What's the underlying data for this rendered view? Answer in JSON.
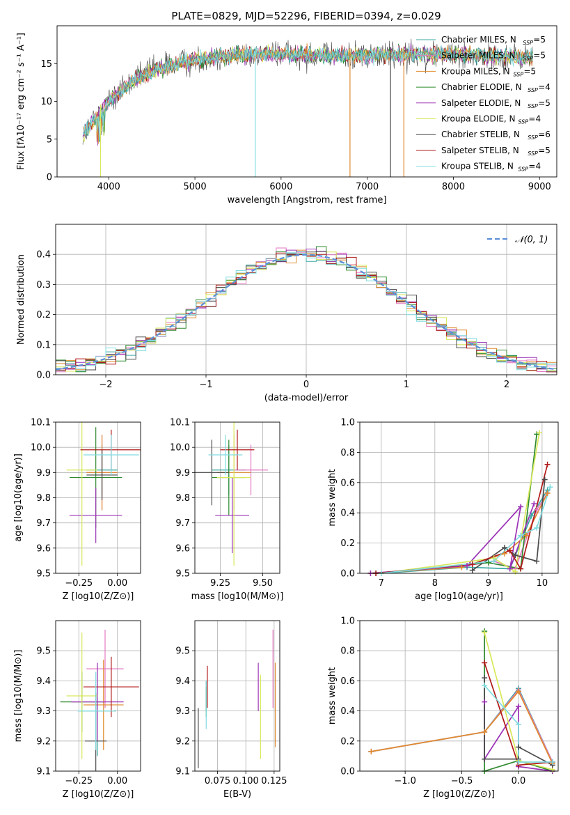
{
  "title": "PLATE=0829, MJD=52296, FIBERID=0394, z=0.029",
  "models": [
    {
      "name": "Chabrier MILES",
      "nssp": "5",
      "color": "#3aa8a3"
    },
    {
      "name": "Salpeter MILES",
      "nssp": "5",
      "color": "#e377c2"
    },
    {
      "name": "Kroupa MILES",
      "nssp": "5",
      "color": "#e08b2e"
    },
    {
      "name": "Chabrier ELODIE",
      "nssp": "4",
      "color": "#2f8a2f"
    },
    {
      "name": "Salpeter ELODIE",
      "nssp": "5",
      "color": "#9b30b5"
    },
    {
      "name": "Kroupa ELODIE",
      "nssp": "4",
      "color": "#d8e85a"
    },
    {
      "name": "Chabrier STELIB",
      "nssp": "6",
      "color": "#4a4a4a"
    },
    {
      "name": "Salpeter STELIB",
      "nssp": "5",
      "color": "#b01818"
    },
    {
      "name": "Kroupa STELIB",
      "nssp": "4",
      "color": "#80dce0"
    }
  ],
  "chart_data": [
    {
      "id": "spectrum",
      "type": "line",
      "xlabel": "wavelength [Angstrom, rest frame]",
      "ylabel": "Flux [fλ10⁻¹⁷ erg cm⁻² s⁻¹ A⁻¹]",
      "xlim": [
        3400,
        9200
      ],
      "ylim": [
        0,
        20
      ],
      "xticks": [
        4000,
        5000,
        6000,
        7000,
        8000,
        9000
      ],
      "yticks": [
        0,
        5,
        10,
        15
      ],
      "grid": false,
      "legend": "upper-right",
      "continuum": [
        [
          3700,
          5.5
        ],
        [
          3800,
          7
        ],
        [
          3900,
          8.5
        ],
        [
          4000,
          10
        ],
        [
          4100,
          11
        ],
        [
          4200,
          12
        ],
        [
          4400,
          13.5
        ],
        [
          4600,
          14.3
        ],
        [
          4800,
          15
        ],
        [
          5000,
          15.5
        ],
        [
          5200,
          15.8
        ],
        [
          5500,
          16.1
        ],
        [
          6000,
          16.3
        ],
        [
          6500,
          16.1
        ],
        [
          7000,
          16
        ],
        [
          7500,
          16.3
        ],
        [
          8000,
          16.2
        ],
        [
          8500,
          16
        ],
        [
          8900,
          15.7
        ]
      ],
      "dropouts": [
        3905,
        5700,
        6800,
        7270,
        7425
      ]
    },
    {
      "id": "residuals",
      "type": "histogram",
      "xlabel": "(data-model)/error",
      "ylabel": "Normed distribution",
      "xlim": [
        -2.5,
        2.5
      ],
      "ylim": [
        0,
        0.5
      ],
      "xticks": [
        -2,
        -1,
        0,
        1,
        2
      ],
      "yticks": [
        0.0,
        0.1,
        0.2,
        0.3,
        0.4
      ],
      "grid": true,
      "legend": "upper-right",
      "reference": {
        "label": "𝒩(0, 1)",
        "mean": 0,
        "sigma": 1,
        "color": "#5b8fd8"
      },
      "bins": 50
    },
    {
      "id": "age-vs-Z",
      "type": "errorbar",
      "xlabel": "Z [log10(Z/Z⊙)]",
      "ylabel": "age [log10(age/yr)]",
      "xlim": [
        -0.4,
        0.15
      ],
      "ylim": [
        9.5,
        10.1
      ],
      "xticks": [
        -0.25,
        0.0
      ],
      "yticks": [
        9.5,
        9.6,
        9.7,
        9.8,
        9.9,
        10.0,
        10.1
      ],
      "points": [
        {
          "x": -0.1,
          "y": 9.91,
          "ex": 0.1,
          "ey": 0.1
        },
        {
          "x": -0.1,
          "y": 9.9,
          "ex": 0.1,
          "ey": 0.15
        },
        {
          "x": -0.1,
          "y": 9.9,
          "ex": 0.1,
          "ey": 0.15
        },
        {
          "x": -0.14,
          "y": 9.88,
          "ex": 0.17,
          "ey": 0.2
        },
        {
          "x": -0.14,
          "y": 9.73,
          "ex": 0.17,
          "ey": 0.11
        },
        {
          "x": -0.23,
          "y": 9.91,
          "ex": 0.1,
          "ey": 0.38
        },
        {
          "x": -0.1,
          "y": 9.89,
          "ex": 0.1,
          "ey": 0.1
        },
        {
          "x": -0.04,
          "y": 9.99,
          "ex": 0.2,
          "ey": 0.08
        },
        {
          "x": -0.04,
          "y": 9.97,
          "ex": 0.18,
          "ey": 0.08
        }
      ]
    },
    {
      "id": "age-vs-mass",
      "type": "errorbar",
      "xlabel": "mass [log10(M/M⊙)]",
      "ylabel": "",
      "xlim": [
        9.1,
        9.6
      ],
      "ylim": [
        9.5,
        10.1
      ],
      "xticks": [
        9.25,
        9.5
      ],
      "yticks": [
        9.5,
        9.6,
        9.7,
        9.8,
        9.9,
        10.0,
        10.1
      ],
      "points": [
        {
          "x": 9.3,
          "y": 9.91,
          "ex": 0.1,
          "ey": 0.1
        },
        {
          "x": 9.43,
          "y": 9.91,
          "ex": 0.1,
          "ey": 0.1
        },
        {
          "x": 9.33,
          "y": 9.9,
          "ex": 0.1,
          "ey": 0.15
        },
        {
          "x": 9.3,
          "y": 9.88,
          "ex": 0.1,
          "ey": 0.15
        },
        {
          "x": 9.32,
          "y": 9.73,
          "ex": 0.1,
          "ey": 0.15
        },
        {
          "x": 9.33,
          "y": 9.88,
          "ex": 0.1,
          "ey": 0.35
        },
        {
          "x": 9.2,
          "y": 9.9,
          "ex": 0.1,
          "ey": 0.13
        },
        {
          "x": 9.35,
          "y": 9.99,
          "ex": 0.1,
          "ey": 0.08
        },
        {
          "x": 9.28,
          "y": 9.97,
          "ex": 0.1,
          "ey": 0.08
        }
      ]
    },
    {
      "id": "mass-weight-vs-age",
      "type": "line",
      "xlabel": "age [log10(age/yr)]",
      "ylabel": "mass weight",
      "xlim": [
        6.6,
        10.3
      ],
      "ylim": [
        0,
        1
      ],
      "xticks": [
        7,
        8,
        9,
        10
      ],
      "yticks": [
        0.0,
        0.2,
        0.4,
        0.6,
        0.8,
        1.0
      ],
      "grid": true,
      "series": [
        {
          "x": [
            7.0,
            8.6,
            9.4,
            9.8,
            10.1
          ],
          "y": [
            0.0,
            0.04,
            0.03,
            0.38,
            0.55
          ]
        },
        {
          "x": [
            6.9,
            8.6,
            9.1,
            9.5,
            9.9,
            10.1
          ],
          "y": [
            0.0,
            0.05,
            0.08,
            0.03,
            0.42,
            0.53
          ]
        },
        {
          "x": [
            6.8,
            8.5,
            9.3,
            9.7,
            10.1
          ],
          "y": [
            0.0,
            0.04,
            0.13,
            0.25,
            0.53
          ]
        },
        {
          "x": [
            6.9,
            9.0,
            9.6,
            9.9
          ],
          "y": [
            0.0,
            0.07,
            0.03,
            0.92
          ]
        },
        {
          "x": [
            6.8,
            8.6,
            9.6,
            9.4,
            9.85
          ],
          "y": [
            0.0,
            0.05,
            0.44,
            0.03,
            0.46
          ]
        },
        {
          "x": [
            7.0,
            9.1,
            9.5,
            9.95
          ],
          "y": [
            0.0,
            0.1,
            0.01,
            0.93
          ]
        },
        {
          "x": [
            8.7,
            9.3,
            9.5,
            9.9,
            10.05
          ],
          "y": [
            0.02,
            0.17,
            0.12,
            0.08,
            0.62
          ]
        },
        {
          "x": [
            6.9,
            8.7,
            9.4,
            9.6,
            10.1
          ],
          "y": [
            0.0,
            0.06,
            0.15,
            0.03,
            0.72
          ]
        },
        {
          "x": [
            7.0,
            9.1,
            9.6,
            9.9,
            10.15
          ],
          "y": [
            0.0,
            0.08,
            0.25,
            0.3,
            0.57
          ]
        }
      ]
    },
    {
      "id": "mass-vs-Z",
      "type": "errorbar",
      "xlabel": "Z [log10(Z/Z⊙)]",
      "ylabel": "mass [log10(M/M⊙)]",
      "xlim": [
        -0.4,
        0.15
      ],
      "ylim": [
        9.1,
        9.6
      ],
      "xticks": [
        -0.25,
        0.0
      ],
      "yticks": [
        9.1,
        9.2,
        9.3,
        9.4,
        9.5
      ],
      "points": [
        {
          "x": -0.13,
          "y": 9.3,
          "ex": 0.12,
          "ey": 0.15
        },
        {
          "x": -0.08,
          "y": 9.44,
          "ex": 0.12,
          "ey": 0.13
        },
        {
          "x": -0.09,
          "y": 9.32,
          "ex": 0.13,
          "ey": 0.15
        },
        {
          "x": -0.23,
          "y": 9.33,
          "ex": 0.14,
          "ey": 0.1
        },
        {
          "x": -0.13,
          "y": 9.33,
          "ex": 0.17,
          "ey": 0.13
        },
        {
          "x": -0.23,
          "y": 9.35,
          "ex": 0.1,
          "ey": 0.21
        },
        {
          "x": -0.14,
          "y": 9.2,
          "ex": 0.07,
          "ey": 0.16
        },
        {
          "x": -0.04,
          "y": 9.38,
          "ex": 0.18,
          "ey": 0.1
        },
        {
          "x": -0.14,
          "y": 9.3,
          "ex": 0.12,
          "ey": 0.13
        }
      ]
    },
    {
      "id": "mass-vs-EBV",
      "type": "errorbar",
      "xlabel": "E(B-V)",
      "ylabel": "",
      "xlim": [
        0.055,
        0.13
      ],
      "ylim": [
        9.1,
        9.6
      ],
      "xticks": [
        0.075,
        0.1,
        0.125
      ],
      "yticks": [
        9.1,
        9.2,
        9.3,
        9.4,
        9.5
      ],
      "points": [
        {
          "x": 0.065,
          "y": 9.35,
          "ex": 0,
          "ey": 0.05
        },
        {
          "x": 0.124,
          "y": 9.44,
          "ex": 0,
          "ey": 0.13
        },
        {
          "x": 0.126,
          "y": 9.32,
          "ex": 0,
          "ey": 0.14
        },
        {
          "x": 0.065,
          "y": 9.33,
          "ex": 0,
          "ey": 0.05
        },
        {
          "x": 0.111,
          "y": 9.38,
          "ex": 0,
          "ey": 0.08
        },
        {
          "x": 0.113,
          "y": 9.28,
          "ex": 0,
          "ey": 0.14
        },
        {
          "x": 0.058,
          "y": 9.21,
          "ex": 0,
          "ey": 0.1
        },
        {
          "x": 0.066,
          "y": 9.38,
          "ex": 0,
          "ey": 0.07
        },
        {
          "x": 0.065,
          "y": 9.32,
          "ex": 0,
          "ey": 0.08
        }
      ]
    },
    {
      "id": "mass-weight-vs-Z",
      "type": "line",
      "xlabel": "Z [log10(Z/Z⊙)]",
      "ylabel": "mass weight",
      "xlim": [
        -1.4,
        0.35
      ],
      "ylim": [
        0,
        1
      ],
      "xticks": [
        -1.0,
        -0.5,
        0.0
      ],
      "yticks": [
        0.0,
        0.2,
        0.4,
        0.6,
        0.8,
        1.0
      ],
      "grid": true,
      "series": [
        {
          "x": [
            -1.3,
            -0.3,
            0.0,
            0.3
          ],
          "y": [
            0.13,
            0.26,
            0.55,
            0.06
          ]
        },
        {
          "x": [
            -1.3,
            -0.3,
            0.0,
            0.3
          ],
          "y": [
            0.13,
            0.26,
            0.54,
            0.06
          ]
        },
        {
          "x": [
            -1.3,
            -0.3,
            0.0,
            0.3
          ],
          "y": [
            0.13,
            0.26,
            0.53,
            0.05
          ]
        },
        {
          "x": [
            -0.3,
            -0.3,
            0.0,
            0.3
          ],
          "y": [
            0.93,
            0.0,
            0.07,
            0.0
          ]
        },
        {
          "x": [
            -0.3,
            -0.3,
            0.0,
            0.0,
            0.3
          ],
          "y": [
            0.46,
            0.08,
            0.43,
            0.03,
            0.0
          ]
        },
        {
          "x": [
            -0.3,
            0.0,
            0.3
          ],
          "y": [
            0.92,
            0.07,
            0.01
          ]
        },
        {
          "x": [
            -0.3,
            -0.3,
            0.0,
            0.0,
            0.3
          ],
          "y": [
            0.62,
            0.08,
            0.08,
            0.16,
            0.04
          ]
        },
        {
          "x": [
            -0.3,
            0.0,
            0.3
          ],
          "y": [
            0.72,
            0.04,
            0.06
          ]
        },
        {
          "x": [
            -0.3,
            0.0,
            0.0,
            0.3
          ],
          "y": [
            0.57,
            0.31,
            0.06,
            0.06
          ]
        }
      ]
    }
  ]
}
